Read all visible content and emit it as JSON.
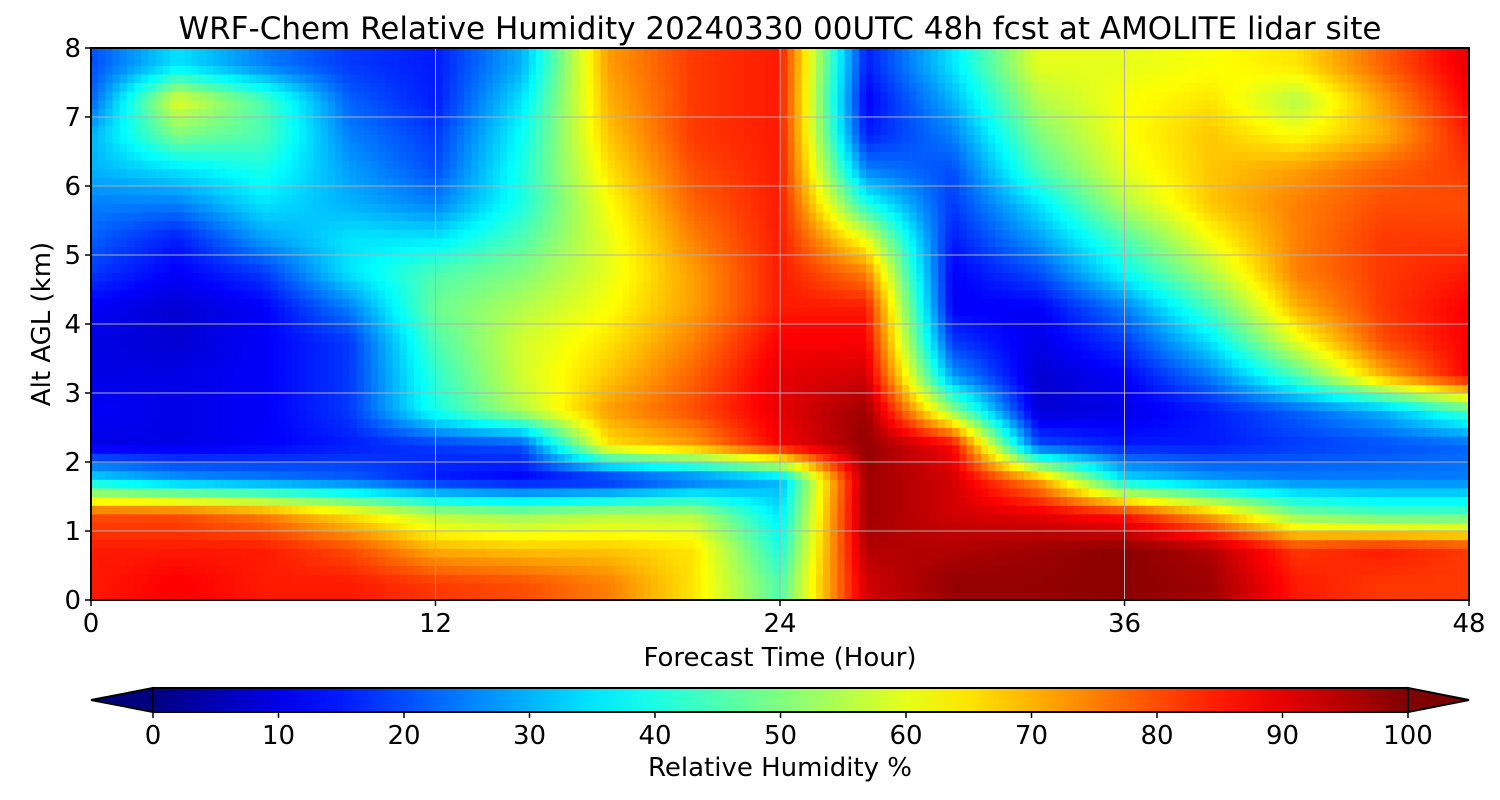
{
  "chart_data": {
    "type": "heatmap",
    "title": "WRF-Chem Relative Humidity 20240330 00UTC 48h fcst at AMOLITE lidar site",
    "xlabel": "Forecast Time (Hour)",
    "ylabel": "Alt AGL (km)",
    "xlim": [
      0,
      48
    ],
    "ylim": [
      0,
      8
    ],
    "xticks": [
      "0",
      "12",
      "24",
      "36",
      "48"
    ],
    "yticks": [
      "0",
      "1",
      "2",
      "3",
      "4",
      "5",
      "6",
      "7",
      "8"
    ],
    "grid": true,
    "colormap": "jet",
    "value_range": [
      0,
      100
    ],
    "colorbar": {
      "label": "Relative Humidity %",
      "ticks": [
        "0",
        "10",
        "20",
        "30",
        "40",
        "50",
        "60",
        "70",
        "80",
        "90",
        "100"
      ],
      "extend": "both",
      "orientation": "horizontal"
    },
    "x": [
      0,
      3,
      6,
      9,
      12,
      15,
      18,
      21,
      24,
      27,
      30,
      33,
      36,
      39,
      42,
      45,
      48
    ],
    "y": [
      0.25,
      0.75,
      1.25,
      1.75,
      2.25,
      2.75,
      3.25,
      3.75,
      4.25,
      4.75,
      5.25,
      5.75,
      6.25,
      6.75,
      7.25,
      7.75
    ],
    "z": [
      [
        85,
        88,
        85,
        85,
        82,
        80,
        75,
        65,
        45,
        92,
        98,
        98,
        99,
        97,
        85,
        82,
        82
      ],
      [
        85,
        85,
        85,
        80,
        70,
        68,
        68,
        65,
        40,
        95,
        95,
        97,
        99,
        95,
        82,
        85,
        82
      ],
      [
        80,
        80,
        75,
        65,
        55,
        52,
        55,
        55,
        35,
        97,
        92,
        90,
        85,
        70,
        50,
        45,
        45
      ],
      [
        35,
        28,
        25,
        22,
        15,
        12,
        14,
        22,
        30,
        97,
        92,
        72,
        35,
        28,
        25,
        25,
        25
      ],
      [
        10,
        10,
        12,
        15,
        18,
        20,
        65,
        72,
        88,
        98,
        88,
        20,
        15,
        15,
        18,
        20,
        22
      ],
      [
        12,
        10,
        12,
        18,
        40,
        55,
        72,
        80,
        90,
        97,
        52,
        8,
        10,
        15,
        22,
        30,
        45
      ],
      [
        10,
        10,
        12,
        18,
        42,
        58,
        68,
        78,
        90,
        92,
        28,
        8,
        12,
        25,
        45,
        70,
        88
      ],
      [
        10,
        8,
        12,
        18,
        45,
        58,
        65,
        75,
        88,
        88,
        18,
        10,
        18,
        35,
        60,
        80,
        88
      ],
      [
        12,
        8,
        12,
        25,
        48,
        55,
        62,
        72,
        85,
        85,
        12,
        12,
        25,
        45,
        70,
        82,
        88
      ],
      [
        18,
        12,
        18,
        35,
        45,
        50,
        60,
        72,
        85,
        75,
        12,
        20,
        38,
        55,
        75,
        82,
        85
      ],
      [
        22,
        15,
        28,
        35,
        35,
        45,
        60,
        75,
        85,
        60,
        15,
        28,
        45,
        62,
        75,
        82,
        82
      ],
      [
        25,
        25,
        35,
        30,
        25,
        40,
        62,
        78,
        85,
        40,
        18,
        35,
        55,
        68,
        75,
        80,
        80
      ],
      [
        30,
        35,
        40,
        28,
        20,
        40,
        65,
        80,
        85,
        25,
        20,
        45,
        60,
        68,
        72,
        78,
        82
      ],
      [
        30,
        50,
        45,
        25,
        18,
        38,
        68,
        82,
        85,
        15,
        25,
        50,
        62,
        68,
        62,
        70,
        85
      ],
      [
        22,
        60,
        45,
        22,
        15,
        35,
        70,
        82,
        85,
        12,
        30,
        55,
        62,
        65,
        55,
        72,
        88
      ],
      [
        20,
        35,
        25,
        18,
        15,
        30,
        72,
        82,
        85,
        15,
        35,
        60,
        60,
        62,
        65,
        78,
        90
      ]
    ]
  }
}
